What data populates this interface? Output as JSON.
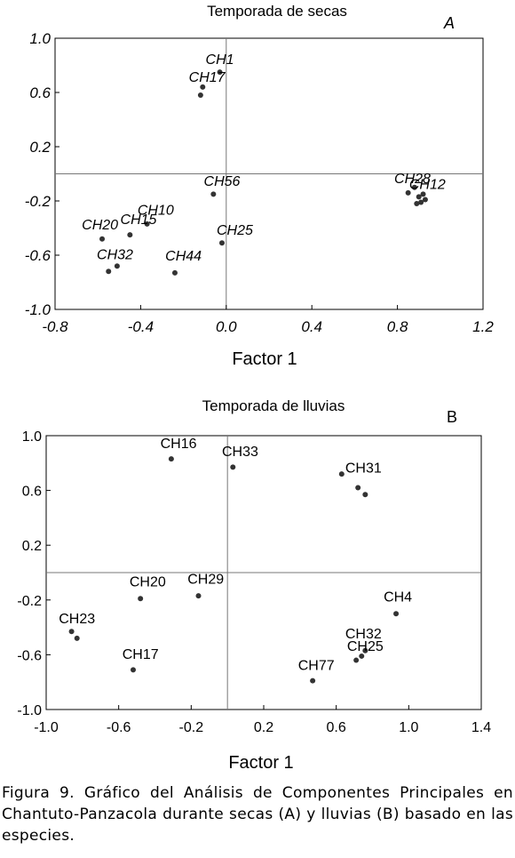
{
  "chart_data": [
    {
      "type": "scatter",
      "panel_label": "A",
      "title": "Temporada de secas",
      "xlabel": "Factor 1",
      "xlim": [
        -0.8,
        1.2
      ],
      "ylim": [
        -1.0,
        1.0
      ],
      "xticks": [
        "-0.8",
        "-0.4",
        "0.0",
        "0.4",
        "0.8",
        "1.2"
      ],
      "yticks": [
        "1.0",
        "0.6",
        "0.2",
        "-0.2",
        "-0.6",
        "-1.0"
      ],
      "reference_lines": {
        "x": 0,
        "y": 0
      },
      "label_style": "italic",
      "points": [
        {
          "x": -0.03,
          "y": 0.75
        },
        {
          "x": -0.11,
          "y": 0.64
        },
        {
          "x": -0.12,
          "y": 0.58
        },
        {
          "x": -0.06,
          "y": -0.15
        },
        {
          "x": -0.37,
          "y": -0.37
        },
        {
          "x": -0.45,
          "y": -0.45
        },
        {
          "x": -0.58,
          "y": -0.48
        },
        {
          "x": -0.02,
          "y": -0.51
        },
        {
          "x": -0.51,
          "y": -0.68
        },
        {
          "x": -0.55,
          "y": -0.72
        },
        {
          "x": -0.24,
          "y": -0.73
        },
        {
          "x": 0.85,
          "y": -0.14
        },
        {
          "x": 0.88,
          "y": -0.1
        },
        {
          "x": 0.9,
          "y": -0.17
        },
        {
          "x": 0.92,
          "y": -0.15
        },
        {
          "x": 0.93,
          "y": -0.19
        },
        {
          "x": 0.89,
          "y": -0.22
        },
        {
          "x": 0.91,
          "y": -0.21
        }
      ],
      "point_labels": [
        {
          "text": "CH1",
          "x": -0.03,
          "y": 0.81
        },
        {
          "text": "CH17",
          "x": -0.09,
          "y": 0.68
        },
        {
          "text": "CH56",
          "x": -0.02,
          "y": -0.09
        },
        {
          "text": "CH10",
          "x": -0.33,
          "y": -0.3
        },
        {
          "text": "CH15",
          "x": -0.41,
          "y": -0.37
        },
        {
          "text": "CH20",
          "x": -0.59,
          "y": -0.41
        },
        {
          "text": "CH25",
          "x": 0.04,
          "y": -0.45
        },
        {
          "text": "CH32",
          "x": -0.52,
          "y": -0.63
        },
        {
          "text": "CH44",
          "x": -0.2,
          "y": -0.64
        },
        {
          "text": "CH28",
          "x": 0.87,
          "y": -0.07
        },
        {
          "text": "CH12",
          "x": 0.94,
          "y": -0.11
        }
      ]
    },
    {
      "type": "scatter",
      "panel_label": "B",
      "title": "Temporada de lluvias",
      "xlabel": "Factor 1",
      "xlim": [
        -1.0,
        1.4
      ],
      "ylim": [
        -1.0,
        1.0
      ],
      "xticks": [
        "-1.0",
        "-0.6",
        "-0.2",
        "0.2",
        "0.6",
        "1.0",
        "1.4"
      ],
      "yticks": [
        "1.0",
        "0.6",
        "0.2",
        "-0.2",
        "-0.6",
        "-1.0"
      ],
      "reference_lines": {
        "x": 0,
        "y": 0
      },
      "label_style": "normal",
      "points": [
        {
          "x": -0.31,
          "y": 0.83
        },
        {
          "x": 0.03,
          "y": 0.77
        },
        {
          "x": 0.63,
          "y": 0.72
        },
        {
          "x": 0.72,
          "y": 0.62
        },
        {
          "x": 0.76,
          "y": 0.57
        },
        {
          "x": -0.48,
          "y": -0.19
        },
        {
          "x": -0.16,
          "y": -0.17
        },
        {
          "x": -0.86,
          "y": -0.43
        },
        {
          "x": -0.83,
          "y": -0.48
        },
        {
          "x": 0.93,
          "y": -0.3
        },
        {
          "x": 0.76,
          "y": -0.57
        },
        {
          "x": 0.74,
          "y": -0.61
        },
        {
          "x": 0.71,
          "y": -0.64
        },
        {
          "x": -0.52,
          "y": -0.71
        },
        {
          "x": 0.47,
          "y": -0.79
        }
      ],
      "point_labels": [
        {
          "text": "CH16",
          "x": -0.27,
          "y": 0.91
        },
        {
          "text": "CH33",
          "x": 0.07,
          "y": 0.85
        },
        {
          "text": "CH31",
          "x": 0.75,
          "y": 0.73
        },
        {
          "text": "CH20",
          "x": -0.44,
          "y": -0.1
        },
        {
          "text": "CH29",
          "x": -0.12,
          "y": -0.08
        },
        {
          "text": "CH4",
          "x": 0.94,
          "y": -0.21
        },
        {
          "text": "CH23",
          "x": -0.83,
          "y": -0.37
        },
        {
          "text": "CH32",
          "x": 0.75,
          "y": -0.48
        },
        {
          "text": "CH25",
          "x": 0.76,
          "y": -0.57
        },
        {
          "text": "CH17",
          "x": -0.48,
          "y": -0.63
        },
        {
          "text": "CH77",
          "x": 0.49,
          "y": -0.71
        }
      ]
    }
  ],
  "caption": "Figura 9. Gráfico del Análisis de Componentes Principales en Chantuto-Panzacola durante secas (A) y lluvias (B) basado en las especies."
}
